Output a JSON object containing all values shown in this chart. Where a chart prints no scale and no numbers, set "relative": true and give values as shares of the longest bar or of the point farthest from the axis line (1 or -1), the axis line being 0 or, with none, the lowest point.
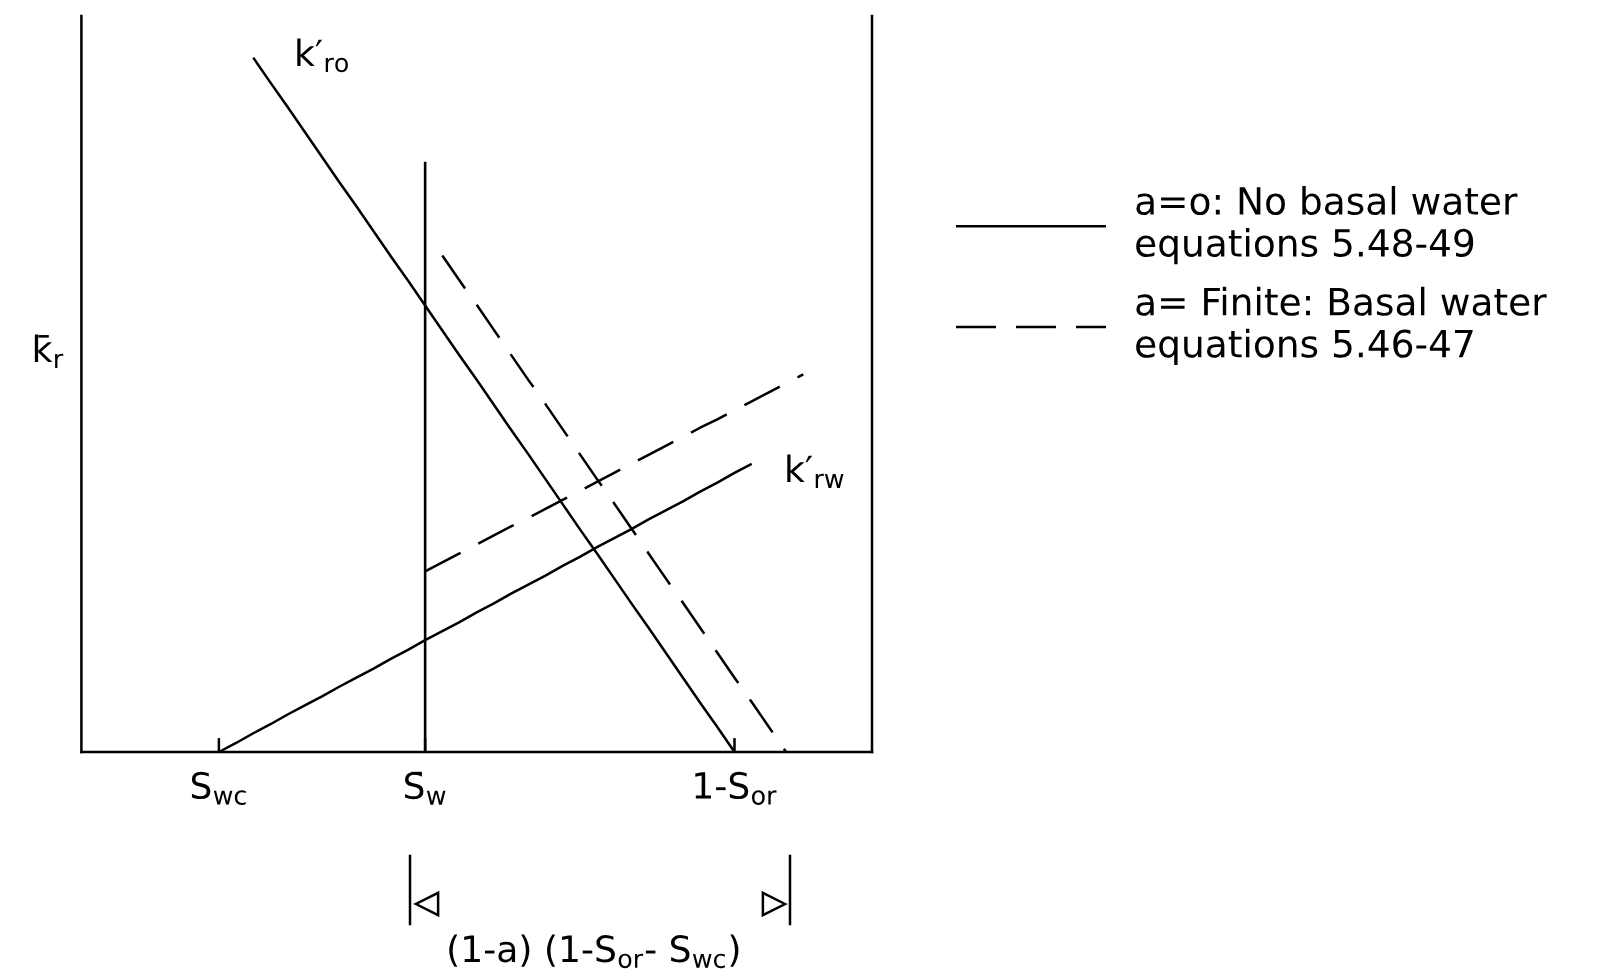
{
  "chart_data": {
    "type": "line",
    "relative": true,
    "ylabel": "k̄$_{r}$",
    "categories": [
      null,
      null,
      null,
      null,
      null,
      null,
      null,
      null,
      "S$_{wc}$",
      null,
      null,
      null,
      null,
      null,
      null,
      null,
      null,
      null,
      null,
      null,
      "S̄$_{w}$",
      null,
      null,
      null,
      null,
      null,
      null,
      null,
      null,
      null,
      null,
      null,
      null,
      null,
      null,
      null,
      null,
      null,
      "1-S$_{or}$",
      null,
      null,
      null,
      null,
      null,
      null,
      null,
      null
    ],
    "series": [
      {
        "name": "a=o: No basal water\nequations 5.48-49",
        "color": "#000000",
        "line_style": "solid",
        "values": [
          null,
          null,
          null,
          null,
          null,
          null,
          null,
          null,
          null,
          null,
          1.0,
          0.964,
          0.929,
          0.893,
          0.857,
          0.821,
          0.786,
          0.75,
          0.714,
          0.679,
          0.643,
          0.607,
          0.571,
          0.536,
          0.5,
          0.464,
          0.429,
          0.393,
          0.357,
          0.321,
          0.286,
          0.25,
          0.214,
          0.179,
          0.143,
          0.107,
          0.071,
          0.036,
          0.0,
          null,
          null,
          null,
          null,
          null,
          null,
          null,
          null
        ]
      },
      {
        "color": "#000000",
        "line_style": "solid",
        "values": [
          null,
          null,
          null,
          null,
          null,
          null,
          null,
          null,
          0.0,
          0.013,
          0.027,
          0.04,
          0.054,
          0.067,
          0.08,
          0.094,
          0.107,
          0.12,
          0.134,
          0.147,
          0.161,
          0.174,
          0.187,
          0.201,
          0.214,
          0.228,
          0.241,
          0.254,
          0.268,
          0.281,
          0.295,
          0.308,
          0.321,
          0.335,
          0.348,
          0.361,
          0.375,
          0.388,
          0.402,
          0.415,
          null,
          null,
          null,
          null,
          null,
          null,
          null
        ]
      },
      {
        "name": "a= Finite: Basal water\nequations 5.46-47",
        "color": "#000000",
        "line_style": "dashed",
        "values": [
          null,
          null,
          null,
          null,
          null,
          null,
          null,
          null,
          null,
          null,
          null,
          null,
          null,
          null,
          null,
          null,
          null,
          null,
          null,
          null,
          null,
          0.715,
          0.679,
          0.644,
          0.608,
          0.572,
          0.536,
          0.501,
          0.465,
          0.429,
          0.393,
          0.358,
          0.322,
          0.286,
          0.25,
          0.215,
          0.179,
          0.143,
          0.107,
          0.072,
          0.036,
          0.0,
          null,
          null,
          null,
          null,
          null
        ]
      },
      {
        "color": "#000000",
        "line_style": "dashed",
        "values": [
          null,
          null,
          null,
          null,
          null,
          null,
          null,
          null,
          null,
          null,
          null,
          null,
          null,
          null,
          null,
          null,
          null,
          null,
          null,
          null,
          0.26,
          0.273,
          0.286,
          0.299,
          0.312,
          0.325,
          0.337,
          0.35,
          0.363,
          0.376,
          0.389,
          0.402,
          0.415,
          0.428,
          0.441,
          0.454,
          0.467,
          0.479,
          0.492,
          0.505,
          0.518,
          0.531,
          0.544,
          null,
          null,
          null,
          null
        ]
      },
      {
        "type": "bar",
        "color": "#000000",
        "values": [
          null,
          null,
          null,
          null,
          null,
          null,
          null,
          null,
          null,
          null,
          null,
          null,
          null,
          null,
          null,
          null,
          null,
          null,
          null,
          null,
          0.85,
          null,
          null,
          null,
          null,
          null,
          null,
          null,
          null,
          null,
          null,
          null,
          null,
          null,
          null,
          null,
          null,
          null,
          null,
          null,
          null,
          null,
          null,
          null,
          null,
          null,
          null
        ]
      }
    ],
    "annotations": [
      "k′$_{ro}$",
      "k′$_{rw}$",
      "(1-a) (1-S$_{or}$- S$_{wc}$)"
    ],
    "legend": "right",
    "marker": "none"
  }
}
